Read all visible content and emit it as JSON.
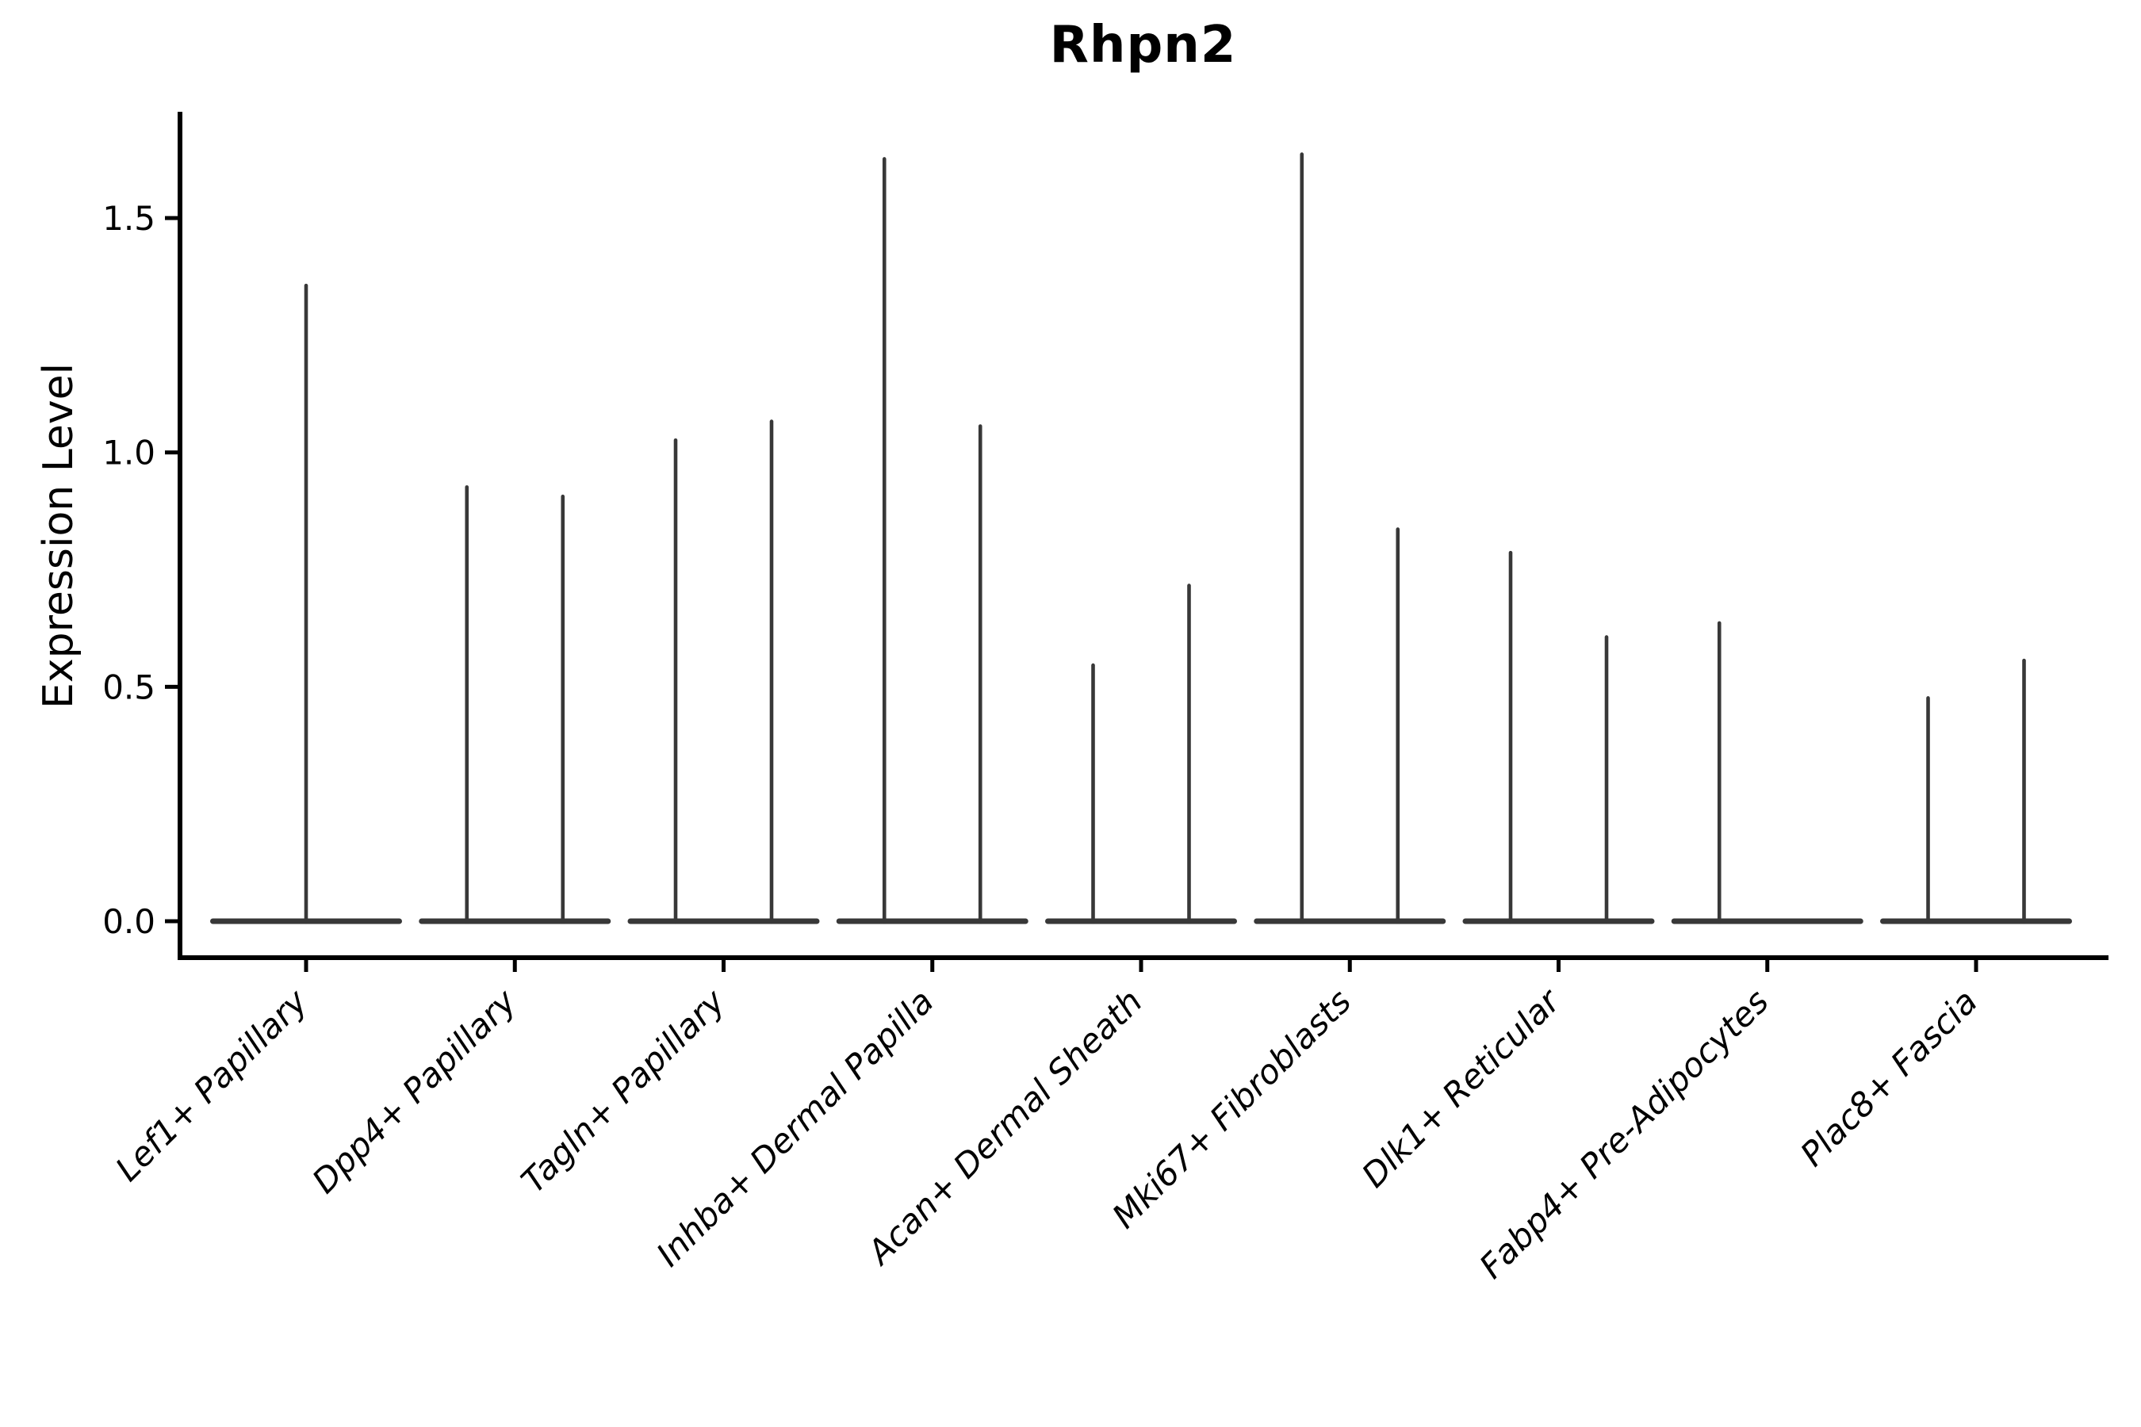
{
  "chart_data": {
    "type": "violin",
    "title": "Rhpn2",
    "xlabel": "",
    "ylabel": "Expression Level",
    "ylim": [
      0,
      1.73
    ],
    "yticks": [
      0,
      0.5,
      1.0,
      1.5
    ],
    "ytick_labels": [
      "0.0",
      "0.5",
      "1.0",
      "1.5"
    ],
    "x_tick_rotation_deg": 45,
    "x_tick_font_style": "italic",
    "grid": false,
    "legend_position": "none",
    "baseline_value": 0,
    "violin_color": "#383838",
    "axis_color": "#000000",
    "background_color": "#ffffff",
    "categories": [
      {
        "label": "Lef1+ Papillary",
        "violins": [
          {
            "slot": "center",
            "peak": 1.36
          }
        ]
      },
      {
        "label": "Dpp4+ Papillary",
        "violins": [
          {
            "slot": "left",
            "peak": 0.93
          },
          {
            "slot": "right",
            "peak": 0.91
          }
        ]
      },
      {
        "label": "Tagln+ Papillary",
        "violins": [
          {
            "slot": "left",
            "peak": 1.03
          },
          {
            "slot": "right",
            "peak": 1.07
          }
        ]
      },
      {
        "label": "Inhba+ Dermal Papilla",
        "violins": [
          {
            "slot": "left",
            "peak": 1.63
          },
          {
            "slot": "right",
            "peak": 1.06
          }
        ]
      },
      {
        "label": "Acan+ Dermal Sheath",
        "violins": [
          {
            "slot": "left",
            "peak": 0.55
          },
          {
            "slot": "right",
            "peak": 0.72
          }
        ]
      },
      {
        "label": "Mki67+ Fibroblasts",
        "violins": [
          {
            "slot": "left",
            "peak": 1.64
          },
          {
            "slot": "right",
            "peak": 0.84
          }
        ]
      },
      {
        "label": "Dlk1+ Reticular",
        "violins": [
          {
            "slot": "left",
            "peak": 0.79
          },
          {
            "slot": "right",
            "peak": 0.61
          }
        ]
      },
      {
        "label": "Fabp4+ Pre-Adipocytes",
        "violins": [
          {
            "slot": "left",
            "peak": 0.64
          },
          {
            "slot": "right",
            "peak": 0.0
          }
        ]
      },
      {
        "label": "Plac8+ Fascia",
        "violins": [
          {
            "slot": "left",
            "peak": 0.48
          },
          {
            "slot": "right",
            "peak": 0.56
          }
        ]
      }
    ]
  }
}
